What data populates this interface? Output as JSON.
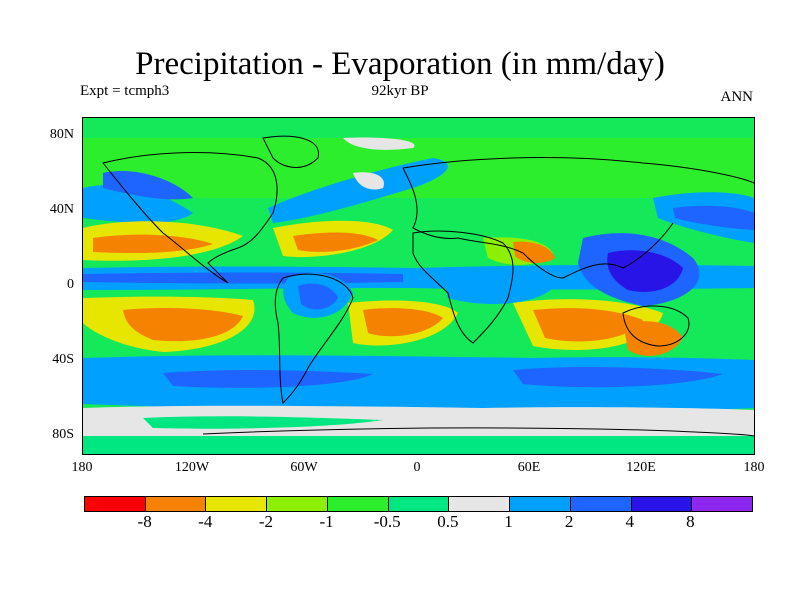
{
  "title": "Precipitation - Evaporation (in mm/day)",
  "expt": "Expt = tcmph3",
  "period": "92kyr BP",
  "season": "ANN",
  "lat_labels": [
    "80N",
    "40N",
    "0",
    "40S",
    "80S"
  ],
  "lon_labels": [
    "180",
    "120W",
    "60W",
    "0",
    "60E",
    "120E",
    "180"
  ],
  "colorbar": {
    "colors": [
      "#ff0000",
      "#f58200",
      "#e6e600",
      "#8cf000",
      "#2dee2d",
      "#00e680",
      "#e6e6e6",
      "#00a0ff",
      "#1e64ff",
      "#2814e6",
      "#8c28f0"
    ],
    "labels": [
      "-8",
      "-4",
      "-2",
      "-1",
      "-0.5",
      "0.5",
      "1",
      "2",
      "4",
      "8"
    ]
  }
}
